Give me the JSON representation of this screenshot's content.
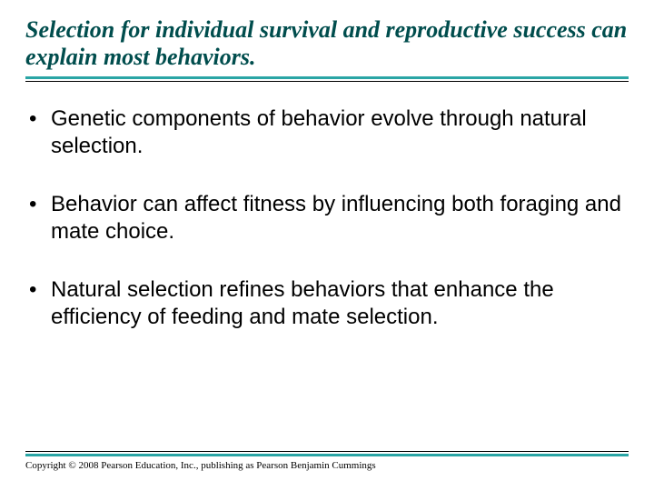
{
  "title": "Selection for individual survival and reproductive success can explain most behaviors.",
  "bullets": [
    "Genetic components of behavior evolve through natural selection.",
    "Behavior can affect fitness by influencing both foraging and mate choice.",
    "Natural selection refines behaviors that enhance the efficiency of feeding and mate selection."
  ],
  "copyright": "Copyright © 2008 Pearson Education, Inc., publishing as Pearson Benjamin Cummings",
  "colors": {
    "title_text": "#004d4d",
    "accent_rule": "#2aa5a5",
    "body_text": "#000000",
    "background": "#ffffff"
  },
  "typography": {
    "title_font": "Times New Roman",
    "title_style": "italic bold",
    "title_size_pt": 20,
    "body_font": "Arial",
    "body_size_pt": 18,
    "copyright_font": "Times New Roman",
    "copyright_size_pt": 8
  }
}
